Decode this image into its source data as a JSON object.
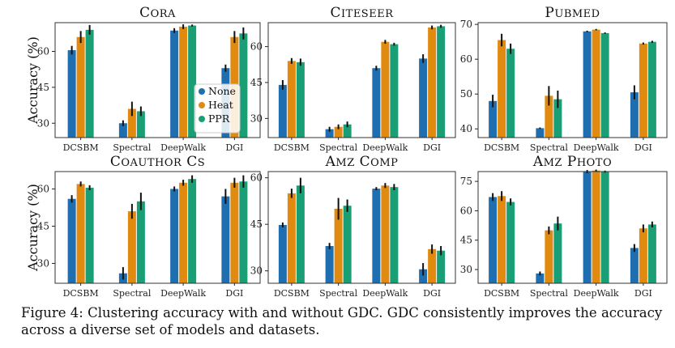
{
  "colors": {
    "None": "#1f6fb0",
    "Heat": "#e08a10",
    "PPR": "#1a9e76"
  },
  "chart_data": [
    {
      "type": "bar",
      "title": "Cora",
      "ylabel": "Accuracy (%)",
      "ylim": [
        24,
        72
      ],
      "yticks": [
        30,
        45,
        60
      ],
      "categories": [
        "DCSBM",
        "Spectral",
        "DeepWalk",
        "DGI"
      ],
      "series": [
        {
          "name": "None",
          "values": [
            60.5,
            30.0,
            68.7,
            53.0
          ],
          "errors": [
            1.8,
            1.2,
            1.0,
            1.5
          ]
        },
        {
          "name": "Heat",
          "values": [
            66.0,
            36.0,
            70.3,
            66.0
          ],
          "errors": [
            2.5,
            3.0,
            1.0,
            2.5
          ]
        },
        {
          "name": "PPR",
          "values": [
            69.0,
            35.0,
            70.8,
            67.5
          ],
          "errors": [
            2.0,
            2.0,
            0.4,
            2.5
          ]
        }
      ],
      "legend": {
        "position": "lower-right",
        "entries": [
          "None",
          "Heat",
          "PPR"
        ]
      }
    },
    {
      "type": "bar",
      "title": "Citeseer",
      "ylabel": "",
      "ylim": [
        22,
        70
      ],
      "yticks": [
        30,
        45,
        60
      ],
      "categories": [
        "DCSBM",
        "Spectral",
        "DeepWalk",
        "DGI"
      ],
      "series": [
        {
          "name": "None",
          "values": [
            44.0,
            25.5,
            51.0,
            55.0
          ],
          "errors": [
            2.0,
            1.0,
            1.0,
            1.8
          ]
        },
        {
          "name": "Heat",
          "values": [
            54.0,
            26.5,
            62.0,
            68.0
          ],
          "errors": [
            1.2,
            1.0,
            0.8,
            0.8
          ]
        },
        {
          "name": "PPR",
          "values": [
            53.5,
            27.5,
            61.0,
            68.5
          ],
          "errors": [
            1.5,
            1.2,
            0.6,
            0.6
          ]
        }
      ]
    },
    {
      "type": "bar",
      "title": "PubMed",
      "ylabel": "",
      "ylim": [
        37.5,
        70.5
      ],
      "yticks": [
        40,
        50,
        60,
        70
      ],
      "categories": [
        "DCSBM",
        "Spectral",
        "DeepWalk",
        "DGI"
      ],
      "series": [
        {
          "name": "None",
          "values": [
            48.0,
            40.2,
            68.0,
            50.5
          ],
          "errors": [
            1.8,
            0.2,
            0.2,
            2.0
          ]
        },
        {
          "name": "Heat",
          "values": [
            65.5,
            49.5,
            68.5,
            64.5
          ],
          "errors": [
            1.8,
            2.8,
            0.2,
            0.3
          ]
        },
        {
          "name": "PPR",
          "values": [
            63.0,
            48.5,
            67.5,
            65.0
          ],
          "errors": [
            1.5,
            2.5,
            0.2,
            0.3
          ]
        }
      ]
    },
    {
      "type": "bar",
      "title": "Coauthor CS",
      "ylabel": "Accuracy (%)",
      "ylim": [
        22,
        67
      ],
      "yticks": [
        30,
        45,
        60
      ],
      "categories": [
        "DCSBM",
        "Spectral",
        "DeepWalk",
        "DGI"
      ],
      "series": [
        {
          "name": "None",
          "values": [
            56.0,
            26.0,
            60.0,
            57.0
          ],
          "errors": [
            1.5,
            2.5,
            1.0,
            3.0
          ]
        },
        {
          "name": "Heat",
          "values": [
            62.0,
            51.0,
            62.5,
            62.5
          ],
          "errors": [
            1.0,
            3.0,
            1.2,
            2.0
          ]
        },
        {
          "name": "PPR",
          "values": [
            60.5,
            55.0,
            64.0,
            63.0
          ],
          "errors": [
            1.0,
            3.5,
            1.5,
            2.5
          ]
        }
      ]
    },
    {
      "type": "bar",
      "title": "Amz Comp",
      "ylabel": "",
      "ylim": [
        26,
        62
      ],
      "yticks": [
        30,
        45,
        60
      ],
      "categories": [
        "DCSBM",
        "Spectral",
        "DeepWalk",
        "DGI"
      ],
      "series": [
        {
          "name": "None",
          "values": [
            44.8,
            38.0,
            56.5,
            30.5
          ],
          "errors": [
            0.8,
            1.0,
            0.5,
            2.0
          ]
        },
        {
          "name": "Heat",
          "values": [
            55.0,
            50.0,
            57.5,
            37.0
          ],
          "errors": [
            1.5,
            3.5,
            0.8,
            1.5
          ]
        },
        {
          "name": "PPR",
          "values": [
            57.5,
            51.0,
            57.0,
            36.5
          ],
          "errors": [
            2.5,
            2.0,
            1.0,
            1.5
          ]
        }
      ]
    },
    {
      "type": "bar",
      "title": "Amz Photo",
      "ylabel": "",
      "ylim": [
        23,
        80
      ],
      "yticks": [
        30,
        45,
        60,
        75
      ],
      "categories": [
        "DCSBM",
        "Spectral",
        "DeepWalk",
        "DGI"
      ],
      "series": [
        {
          "name": "None",
          "values": [
            67.0,
            28.0,
            80.0,
            41.0
          ],
          "errors": [
            2.0,
            1.0,
            0.8,
            2.0
          ]
        },
        {
          "name": "Heat",
          "values": [
            67.5,
            50.0,
            80.5,
            51.0
          ],
          "errors": [
            2.5,
            2.0,
            0.5,
            2.0
          ]
        },
        {
          "name": "PPR",
          "values": [
            64.5,
            53.5,
            80.0,
            53.0
          ],
          "errors": [
            1.8,
            3.5,
            0.5,
            1.5
          ]
        }
      ]
    }
  ],
  "caption": "Figure 4: Clustering accuracy with and without GDC. GDC consistently improves the accuracy across a diverse set of models and datasets."
}
